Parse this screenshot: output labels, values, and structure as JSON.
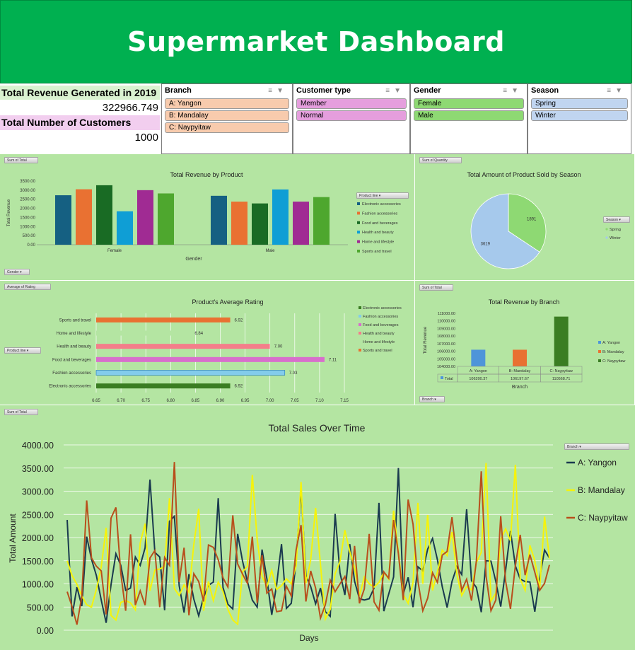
{
  "header": {
    "title": "Supermarket Dashboard"
  },
  "kpi": {
    "revenue_label": "Total Revenue Generated in 2019",
    "revenue_value": "322966.749",
    "customers_label": "Total Number of Customers",
    "customers_value": "1000"
  },
  "slicers": {
    "branch": {
      "title": "Branch",
      "items": [
        "A: Yangon",
        "B: Mandalay",
        "C: Naypyitaw"
      ]
    },
    "customer_type": {
      "title": "Customer type",
      "items": [
        "Member",
        "Normal"
      ]
    },
    "gender": {
      "title": "Gender",
      "items": [
        "Female",
        "Male"
      ]
    },
    "season": {
      "title": "Season",
      "items": [
        "Spring",
        "Winter"
      ]
    }
  },
  "colors": {
    "panel_bg": "#b4e5a2",
    "header_bg": "#00b050",
    "branch_item": "#f8cbad",
    "customer_item": "#e59edd",
    "gender_item": "#8ed973",
    "season_item": "#c0d5f0"
  },
  "revenue_by_product": {
    "field_button": "Sum of Total",
    "axis_button": "Gender",
    "legend_button": "Product line",
    "chart_data": {
      "type": "bar",
      "title": "Total Revenue by Product",
      "xlabel": "Gender",
      "ylabel": "Total Revenue",
      "categories": [
        "Female",
        "Male"
      ],
      "ylim": [
        0,
        3500
      ],
      "yticks": [
        "0.00",
        "500.00",
        "1000.00",
        "1500.00",
        "2000.00",
        "2500.00",
        "3000.00",
        "3500.00"
      ],
      "series": [
        {
          "name": "Electronic accessories",
          "color": "#156082",
          "values": [
            2720,
            2690
          ]
        },
        {
          "name": "Fashion accessories",
          "color": "#e97132",
          "values": [
            3050,
            2370
          ]
        },
        {
          "name": "Food and beverages",
          "color": "#196b24",
          "values": [
            3270,
            2270
          ]
        },
        {
          "name": "Health and beauty",
          "color": "#0f9ed5",
          "values": [
            1840,
            3040
          ]
        },
        {
          "name": "Home and lifestyle",
          "color": "#a02b93",
          "values": [
            3000,
            2370
          ]
        },
        {
          "name": "Sports and travel",
          "color": "#4ea72e",
          "values": [
            2820,
            2620
          ]
        }
      ]
    }
  },
  "sold_by_season": {
    "field_button": "Sum of Quantity",
    "legend_button": "Season",
    "chart_data": {
      "type": "pie",
      "title": "Total Amount of Product Sold by Season",
      "categories": [
        "Spring",
        "Winter"
      ],
      "values": [
        1891,
        3619
      ],
      "labels": [
        "1891",
        "3619"
      ],
      "colors": [
        "#8ed973",
        "#a6c9ec"
      ]
    }
  },
  "average_rating": {
    "field_button": "Average of Rating",
    "axis_button": "Product line",
    "chart_data": {
      "type": "bar",
      "orientation": "horizontal",
      "title": "Product's Average Rating",
      "categories": [
        "Electronic accessories",
        "Fashion accessories",
        "Food and beverages",
        "Health and beauty",
        "Home and lifestyle",
        "Sports and travel"
      ],
      "values": [
        6.92,
        7.03,
        7.11,
        7.0,
        6.84,
        6.92
      ],
      "labels": [
        "6.92",
        "7.03",
        "7.11",
        "7.00",
        "6.84",
        "6.92"
      ],
      "colors": [
        "#3a7d22",
        "#83cceb",
        "#d86ecc",
        "#f47e8a",
        "#b4e5a2",
        "#e97132"
      ],
      "legend": [
        "Electronic accessories",
        "Fashion accessories",
        "Food and beverages",
        "Health and beauty",
        "Home and lifestyle",
        "Sports and travel"
      ],
      "xlim": [
        6.65,
        7.15
      ],
      "xticks": [
        "6.65",
        "6.70",
        "6.75",
        "6.80",
        "6.85",
        "6.90",
        "6.95",
        "7.00",
        "7.05",
        "7.10",
        "7.15"
      ]
    }
  },
  "revenue_by_branch": {
    "field_button": "Sum of Total",
    "axis_button": "Branch",
    "chart_data": {
      "type": "bar",
      "title": "Total Revenue by Branch",
      "xlabel": "Branch",
      "ylabel": "Total Revenue",
      "categories": [
        "A: Yangon",
        "B: Mandalay",
        "C: Naypyitaw"
      ],
      "values": [
        106200.37,
        106197.67,
        110568.71
      ],
      "labels": [
        "106200.37",
        "106197.67",
        "110568.71"
      ],
      "colors": [
        "#4e95d9",
        "#e97132",
        "#3a7d22"
      ],
      "table_row_label": "Total",
      "ylim": [
        104000,
        111000
      ],
      "yticks": [
        "104000.00",
        "105000.00",
        "106000.00",
        "107000.00",
        "108000.00",
        "109000.00",
        "110000.00",
        "111000.00"
      ]
    }
  },
  "sales_over_time": {
    "field_button": "Sum of Total",
    "legend_button": "Branch",
    "chart_data": {
      "type": "line",
      "title": "Total Sales Over Time",
      "xlabel": "Days",
      "ylabel": "Total  Amount",
      "ylim": [
        0,
        4000
      ],
      "yticks": [
        "0.00",
        "500.00",
        "1000.00",
        "1500.00",
        "2000.00",
        "2500.00",
        "3000.00",
        "3500.00",
        "4000.00"
      ],
      "series": [
        {
          "name": "A: Yangon",
          "color": "#1a3a4f",
          "values": [
            2380,
            300,
            930,
            520,
            2020,
            1530,
            1180,
            650,
            160,
            980,
            1650,
            1400,
            860,
            910,
            1580,
            1400,
            1780,
            3250,
            1680,
            1580,
            430,
            2350,
            2460,
            960,
            380,
            1210,
            670,
            310,
            710,
            970,
            1040,
            2850,
            920,
            560,
            460,
            2080,
            1490,
            1050,
            650,
            500,
            1740,
            1110,
            330,
            980,
            1860,
            470,
            580,
            1480,
            3060,
            1180,
            940,
            570,
            910,
            400,
            300,
            2510,
            1240,
            760,
            1860,
            1060,
            680,
            650,
            680,
            910,
            2750,
            410,
            780,
            1150,
            3500,
            780,
            1140,
            500,
            1370,
            1280,
            1750,
            1980,
            1520,
            940,
            490,
            1050,
            1370,
            1200,
            2610,
            1070,
            920,
            390,
            1500,
            1490,
            1050,
            510,
            1290,
            2140,
            1390,
            1100,
            1050,
            1040,
            400,
            1130,
            1730,
            1560
          ]
        },
        {
          "name": "B: Mandalay",
          "color": "#f6f30a",
          "values": [
            1500,
            1180,
            990,
            740,
            550,
            500,
            880,
            1370,
            2210,
            320,
            220,
            600,
            640,
            590,
            440,
            1880,
            2300,
            850,
            1300,
            1320,
            1380,
            2850,
            900,
            750,
            980,
            820,
            1850,
            2620,
            420,
            1050,
            640,
            1040,
            830,
            450,
            220,
            130,
            1260,
            1380,
            3350,
            1960,
            1160,
            940,
            1290,
            880,
            960,
            1110,
            1000,
            1390,
            3200,
            1010,
            1520,
            2640,
            1420,
            240,
            450,
            1220,
            1480,
            2160,
            1700,
            1350,
            740,
            1150,
            1000,
            930,
            1030,
            1250,
            1100,
            2580,
            1680,
            770,
            580,
            1030,
            2750,
            1000,
            2490,
            860,
            1260,
            1730,
            1610,
            2120,
            1200,
            750,
            940,
            870,
            1460,
            1680,
            3610,
            630,
            800,
            1960,
            2190,
            1930,
            3570,
            1100,
            860,
            1830,
            1500,
            900,
            2450,
            1550
          ]
        },
        {
          "name": "C: Naypyitaw",
          "color": "#b84f1c",
          "values": [
            830,
            510,
            120,
            730,
            2800,
            1560,
            1380,
            1280,
            340,
            2420,
            2650,
            1230,
            420,
            2070,
            540,
            850,
            540,
            1560,
            1720,
            500,
            1570,
            1400,
            3630,
            1040,
            1780,
            320,
            1220,
            1050,
            620,
            1840,
            1790,
            1520,
            1130,
            930,
            2480,
            1430,
            1210,
            1010,
            2020,
            590,
            1620,
            800,
            890,
            400,
            420,
            950,
            740,
            1740,
            2270,
            620,
            1280,
            910,
            260,
            550,
            1080,
            830,
            1000,
            1160,
            670,
            1820,
            580,
            890,
            2080,
            610,
            430,
            1260,
            1120,
            2380,
            1650,
            650,
            2820,
            2290,
            1060,
            420,
            690,
            1240,
            1030,
            1620,
            1700,
            2440,
            1530,
            860,
            1100,
            640,
            1500,
            3430,
            1170,
            420,
            650,
            2460,
            1060,
            460,
            1390,
            2060,
            1190,
            1630,
            1250,
            860,
            1010,
            1410
          ]
        }
      ]
    }
  }
}
